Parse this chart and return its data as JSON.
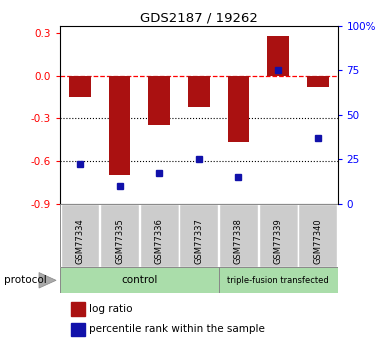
{
  "title": "GDS2187 / 19262",
  "samples": [
    "GSM77334",
    "GSM77335",
    "GSM77336",
    "GSM77337",
    "GSM77338",
    "GSM77339",
    "GSM77340"
  ],
  "log_ratio": [
    -0.15,
    -0.7,
    -0.35,
    -0.22,
    -0.47,
    0.28,
    -0.08
  ],
  "percentile_rank": [
    22,
    10,
    17,
    25,
    15,
    75,
    37
  ],
  "ylim_left": [
    -0.9,
    0.35
  ],
  "ylim_right": [
    0,
    100
  ],
  "bar_color": "#AA1111",
  "dot_color": "#1111AA",
  "yticks_left": [
    0.3,
    0.0,
    -0.3,
    -0.6,
    -0.9
  ],
  "yticks_right": [
    100,
    75,
    50,
    25,
    0
  ],
  "hline_y": 0.0,
  "dotted_lines": [
    -0.3,
    -0.6
  ],
  "control_count": 4,
  "total_count": 7,
  "protocol_label": "protocol",
  "legend_items": [
    {
      "label": "log ratio",
      "color": "#AA1111"
    },
    {
      "label": "percentile rank within the sample",
      "color": "#1111AA"
    }
  ],
  "background_color": "#ffffff",
  "plot_bg_color": "#ffffff",
  "gray_box_color": "#cccccc",
  "green_color": "#aaddaa",
  "control_label": "control",
  "transfected_label": "triple-fusion transfected"
}
